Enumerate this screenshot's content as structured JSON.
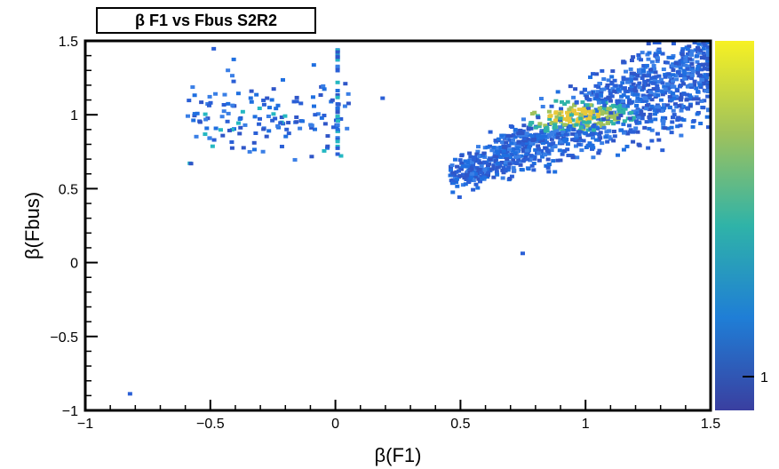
{
  "chart_data": {
    "type": "heatmap",
    "title": "β F1 vs Fbus S2R2",
    "xlabel": "β(F1)",
    "ylabel": "β(Fbus)",
    "xlim": [
      -1,
      1.5
    ],
    "ylim": [
      -1,
      1.5
    ],
    "x_ticks": [
      "−1",
      "−0.5",
      "0",
      "0.5",
      "1",
      "1.5"
    ],
    "y_ticks": [
      "−1",
      "−0.5",
      "0",
      "0.5",
      "1",
      "1.5"
    ],
    "colorbar": {
      "ticks": [
        "1"
      ],
      "palette": "blue-green-yellow"
    },
    "clusters": [
      {
        "region": "upper-left",
        "x_range": [
          -0.6,
          0.2
        ],
        "y_range": [
          0.65,
          1.45
        ]
      },
      {
        "region": "vertical-strip",
        "x": 0.0,
        "y_range": [
          0.7,
          1.45
        ]
      },
      {
        "region": "main-band",
        "x_range": [
          0.45,
          1.5
        ],
        "y_range": [
          0.45,
          1.5
        ]
      }
    ],
    "isolated_points": [
      {
        "x": -0.83,
        "y": -0.9
      },
      {
        "x": 0.74,
        "y": 0.05
      }
    ]
  }
}
